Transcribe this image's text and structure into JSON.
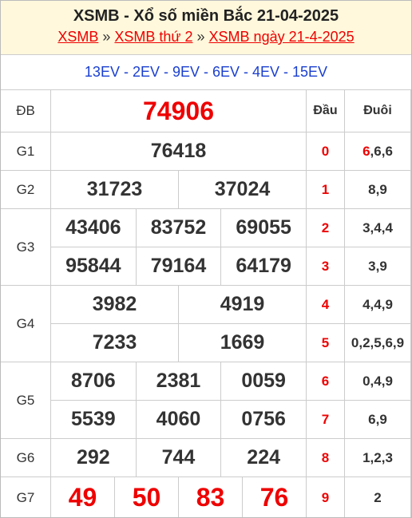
{
  "header": {
    "title": "XSMB - Xổ số miền Bắc 21-04-2025",
    "links": [
      "XSMB",
      "XSMB thứ 2",
      "XSMB ngày 21-4-2025"
    ],
    "separator": "»"
  },
  "codes": "13EV - 2EV - 9EV - 6EV - 4EV - 15EV",
  "prizes": [
    {
      "label": "ĐB",
      "red": true,
      "rows": [
        [
          "74906"
        ]
      ]
    },
    {
      "label": "G1",
      "rows": [
        [
          "76418"
        ]
      ]
    },
    {
      "label": "G2",
      "rows": [
        [
          "31723",
          "37024"
        ]
      ]
    },
    {
      "label": "G3",
      "rows": [
        [
          "43406",
          "83752",
          "69055"
        ],
        [
          "95844",
          "79164",
          "64179"
        ]
      ]
    },
    {
      "label": "G4",
      "rows": [
        [
          "3982",
          "4919"
        ],
        [
          "7233",
          "1669"
        ]
      ]
    },
    {
      "label": "G5",
      "rows": [
        [
          "8706",
          "2381",
          "0059"
        ],
        [
          "5539",
          "4060",
          "0756"
        ]
      ]
    },
    {
      "label": "G6",
      "rows": [
        [
          "292",
          "744",
          "224"
        ]
      ]
    },
    {
      "label": "G7",
      "red": true,
      "rows": [
        [
          "49",
          "50",
          "83",
          "76"
        ]
      ]
    }
  ],
  "loto": {
    "head_title": "Đầu",
    "tail_title": "Đuôi",
    "heads": [
      "0",
      "1",
      "2",
      "3",
      "4",
      "5",
      "6",
      "7",
      "8",
      "9"
    ],
    "tails": [
      {
        "hot": "6",
        "rest": ",6,6"
      },
      {
        "rest": "8,9"
      },
      {
        "rest": "3,4,4"
      },
      {
        "rest": "3,9"
      },
      {
        "rest": "4,4,9"
      },
      {
        "rest": "0,2,5,6,9"
      },
      {
        "rest": "0,4,9"
      },
      {
        "rest": "6,9"
      },
      {
        "rest": "1,2,3"
      },
      {
        "rest": "2"
      }
    ]
  }
}
